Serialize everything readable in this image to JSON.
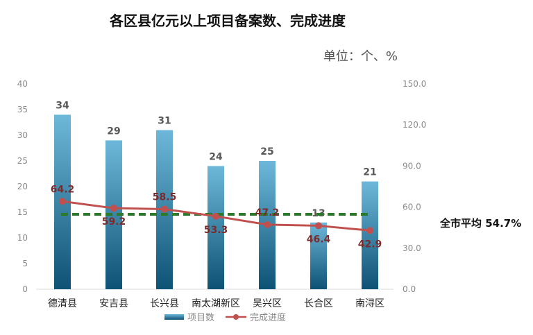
{
  "chart_data": {
    "type": "bar",
    "title": "各区县亿元以上项目备案数、完成进度",
    "unit_note": "单位：个、%",
    "categories": [
      "德清县",
      "安吉县",
      "长兴县",
      "南太湖新区",
      "吴兴区",
      "长合区",
      "南浔区"
    ],
    "series": [
      {
        "name": "项目数",
        "type": "bar",
        "axis": "left",
        "values": [
          34,
          29,
          31,
          24,
          25,
          13,
          21
        ],
        "color": "#2f7fa8"
      },
      {
        "name": "完成进度",
        "type": "line",
        "axis": "right",
        "values": [
          64.2,
          59.2,
          58.5,
          53.3,
          47.2,
          46.4,
          42.9
        ],
        "color": "#c0504d"
      }
    ],
    "average": {
      "label": "全市平均 54.7%",
      "value": 54.7,
      "axis": "right",
      "color": "#2a7a2a"
    },
    "y_left": {
      "min": 0,
      "max": 40,
      "ticks": [
        "0",
        "5",
        "10",
        "15",
        "20",
        "25",
        "30",
        "35",
        "40"
      ]
    },
    "y_right": {
      "min": 0,
      "max": 150,
      "ticks": [
        "0.0",
        "30.0",
        "60.0",
        "90.0",
        "120.0",
        "150.0"
      ]
    },
    "grid": false,
    "legend": "bottom"
  }
}
